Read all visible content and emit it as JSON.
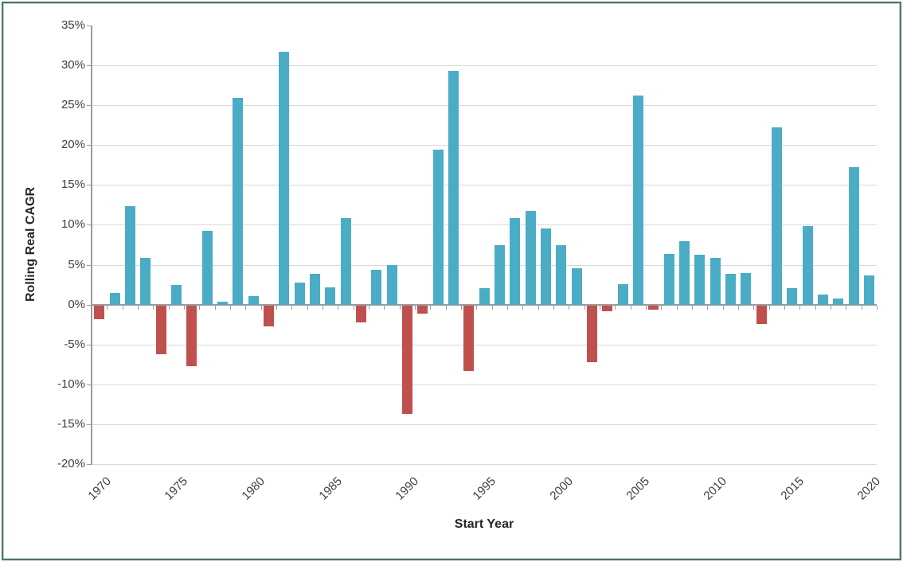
{
  "chart_data": {
    "type": "bar",
    "title": "",
    "xlabel": "Start Year",
    "ylabel": "Rolling Real CAGR",
    "ylim": [
      -20,
      35
    ],
    "ytick_step": 5,
    "grid": true,
    "legend": null,
    "ytick_labels": [
      "35%",
      "30%",
      "25%",
      "20%",
      "15%",
      "10%",
      "5%",
      "0%",
      "-5%",
      "-10%",
      "-15%",
      "-20%"
    ],
    "xtick_labels": [
      "1970",
      "1975",
      "1980",
      "1985",
      "1990",
      "1995",
      "2000",
      "2005",
      "2010",
      "2015",
      "2020"
    ],
    "categories": [
      1970,
      1971,
      1972,
      1973,
      1974,
      1975,
      1976,
      1977,
      1978,
      1979,
      1980,
      1981,
      1982,
      1983,
      1984,
      1985,
      1986,
      1987,
      1988,
      1989,
      1990,
      1991,
      1992,
      1993,
      1994,
      1995,
      1996,
      1997,
      1998,
      1999,
      2000,
      2001,
      2002,
      2003,
      2004,
      2005,
      2006,
      2007,
      2008,
      2009,
      2010,
      2011,
      2012,
      2013,
      2014,
      2015,
      2016,
      2017,
      2018,
      2019,
      2020
    ],
    "values": [
      -1.7,
      1.5,
      12.3,
      5.9,
      -6.1,
      2.5,
      -7.6,
      9.2,
      0.4,
      25.9,
      1.1,
      -2.6,
      31.7,
      2.8,
      3.9,
      2.2,
      10.8,
      -2.1,
      4.4,
      5.0,
      -13.6,
      -1.0,
      19.4,
      29.3,
      -8.2,
      2.1,
      7.5,
      10.8,
      11.7,
      9.5,
      7.5,
      4.6,
      -7.1,
      -0.7,
      2.6,
      26.2,
      -0.5,
      6.4,
      7.9,
      6.3,
      5.9,
      3.9,
      4.0,
      -2.3,
      22.2,
      2.1,
      9.8,
      1.3,
      0.8,
      17.2,
      3.7
    ],
    "colors": {
      "positive_bar": "#4BACC6",
      "negative_bar": "#C0504D",
      "gridline": "#D9D9D9",
      "axis_line": "#9B9B9B",
      "tick_text": "#3F3F3F",
      "frame_border": "#4F7467"
    }
  }
}
